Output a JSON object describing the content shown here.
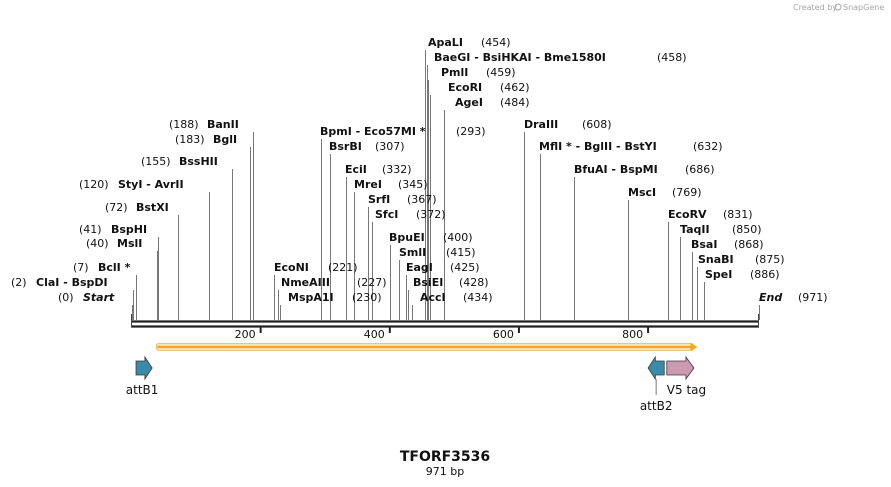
{
  "watermark": {
    "prefix": "Created by",
    "brand": "SnapGene"
  },
  "plasmid": {
    "name": "TFORF3536",
    "length_label": "971 bp"
  },
  "scale": {
    "total_bp": 971
  },
  "ticks": [
    {
      "bp": 200,
      "label": "200"
    },
    {
      "bp": 400,
      "label": "400"
    },
    {
      "bp": 600,
      "label": "600"
    },
    {
      "bp": 800,
      "label": "800"
    }
  ],
  "sites": [
    {
      "id": "apai",
      "text": "ApaLI",
      "pos": "(454)"
    },
    {
      "id": "baegi",
      "text": "BaeGI  -  BsiHKAI  -  Bme1580I",
      "pos": "(458)"
    },
    {
      "id": "pmli",
      "text": "PmlI",
      "pos": "(459)"
    },
    {
      "id": "ecori",
      "text": "EcoRI",
      "pos": "(462)"
    },
    {
      "id": "agei",
      "text": "AgeI",
      "pos": "(484)"
    },
    {
      "id": "banii",
      "text": "BanII",
      "pos": "(188)"
    },
    {
      "id": "bgli",
      "text": "BglI",
      "pos": "(183)"
    },
    {
      "id": "bpmi",
      "text": "BpmI  -  Eco57MI *",
      "pos": "(293)"
    },
    {
      "id": "bsrbi",
      "text": "BsrBI",
      "pos": "(307)"
    },
    {
      "id": "draiii",
      "text": "DraIII",
      "pos": "(608)"
    },
    {
      "id": "mlui",
      "text": "MflI *  -  BglII  -  BstYI",
      "pos": "(632)"
    },
    {
      "id": "bsshii",
      "text": "BssHII",
      "pos": "(155)"
    },
    {
      "id": "ecii",
      "text": "EciI",
      "pos": "(332)"
    },
    {
      "id": "bfuai",
      "text": "BfuAI  -  BspMI",
      "pos": "(686)"
    },
    {
      "id": "styi",
      "text": "StyI  -  AvrII",
      "pos": "(120)"
    },
    {
      "id": "mrei",
      "text": "MreI",
      "pos": "(345)"
    },
    {
      "id": "msci",
      "text": "MscI",
      "pos": "(769)"
    },
    {
      "id": "srfi",
      "text": "SrfI",
      "pos": "(367)"
    },
    {
      "id": "bstxi",
      "text": "BstXI",
      "pos": "(72)"
    },
    {
      "id": "sfci",
      "text": "SfcI",
      "pos": "(372)"
    },
    {
      "id": "ecorv",
      "text": "EcoRV",
      "pos": "(831)"
    },
    {
      "id": "bsphi",
      "text": "BspHI",
      "pos": "(41)"
    },
    {
      "id": "taqii",
      "text": "TaqII",
      "pos": "(850)"
    },
    {
      "id": "bpuei",
      "text": "BpuEI",
      "pos": "(400)"
    },
    {
      "id": "msli",
      "text": "MslI",
      "pos": "(40)"
    },
    {
      "id": "bsai",
      "text": "BsaI",
      "pos": "(868)"
    },
    {
      "id": "smli",
      "text": "SmlI",
      "pos": "(415)"
    },
    {
      "id": "snabi",
      "text": "SnaBI",
      "pos": "(875)"
    },
    {
      "id": "bcli",
      "text": "BclI *",
      "pos": "(7)"
    },
    {
      "id": "econi",
      "text": "EcoNI",
      "pos": "(221)"
    },
    {
      "id": "eagi",
      "text": "EagI",
      "pos": "(425)"
    },
    {
      "id": "spei",
      "text": "SpeI",
      "pos": "(886)"
    },
    {
      "id": "clai",
      "text": "ClaI  -  BspDI",
      "pos": "(2)"
    },
    {
      "id": "nmeaiii",
      "text": "NmeAIII",
      "pos": "(227)"
    },
    {
      "id": "bsiei",
      "text": "BsiEI",
      "pos": "(428)"
    },
    {
      "id": "start",
      "text": "Start",
      "pos": "(0)"
    },
    {
      "id": "mspa1i",
      "text": "MspA1I",
      "pos": "(230)"
    },
    {
      "id": "acci",
      "text": "AccI",
      "pos": "(434)"
    },
    {
      "id": "end",
      "text": "End",
      "pos": "(971)"
    }
  ],
  "features": [
    {
      "id": "orf",
      "label": "",
      "start": 40,
      "end": 875,
      "color": "#f5a623"
    },
    {
      "id": "attb1",
      "label": "attB1",
      "start": 7,
      "end": 32,
      "color": "#3a8ba8"
    },
    {
      "id": "attb2",
      "label": "attB2",
      "start": 800,
      "end": 825,
      "color": "#3a8ba8"
    },
    {
      "id": "v5tag",
      "label": "V5 tag",
      "start": 829,
      "end": 871,
      "color": "#cc99b2"
    }
  ]
}
